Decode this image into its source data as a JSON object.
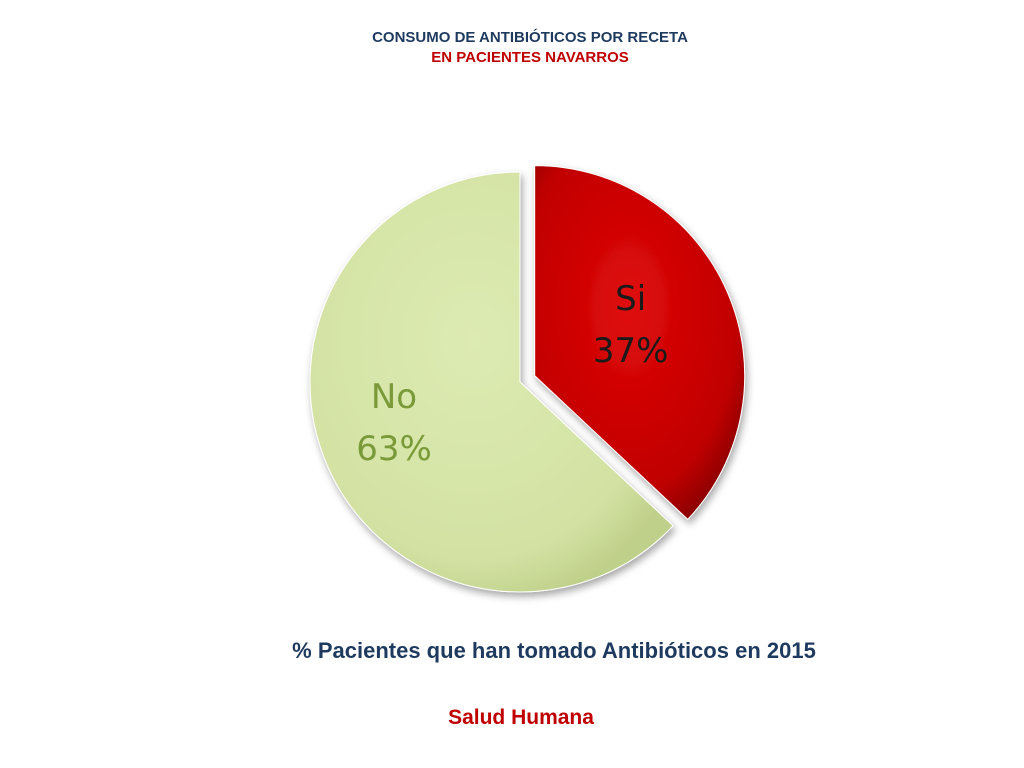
{
  "header": {
    "title_line1": "CONSUMO DE ANTIBIÓTICOS POR RECETA",
    "title_line2": "EN PACIENTES NAVARROS"
  },
  "caption": "% Pacientes que han tomado Antibióticos en 2015",
  "footer": "Salud Humana",
  "chart_data": {
    "type": "pie",
    "title": "CONSUMO DE ANTIBIÓTICOS POR RECETA EN PACIENTES NAVARROS",
    "slices": [
      {
        "label": "Si",
        "value": 37,
        "display": "37%",
        "color": "#c00000",
        "label_color": "#1a1a1a",
        "exploded": true
      },
      {
        "label": "No",
        "value": 63,
        "display": "63%",
        "color": "#d6e4a8",
        "label_color": "#7a9a3a",
        "exploded": false
      }
    ],
    "legend": "none"
  }
}
